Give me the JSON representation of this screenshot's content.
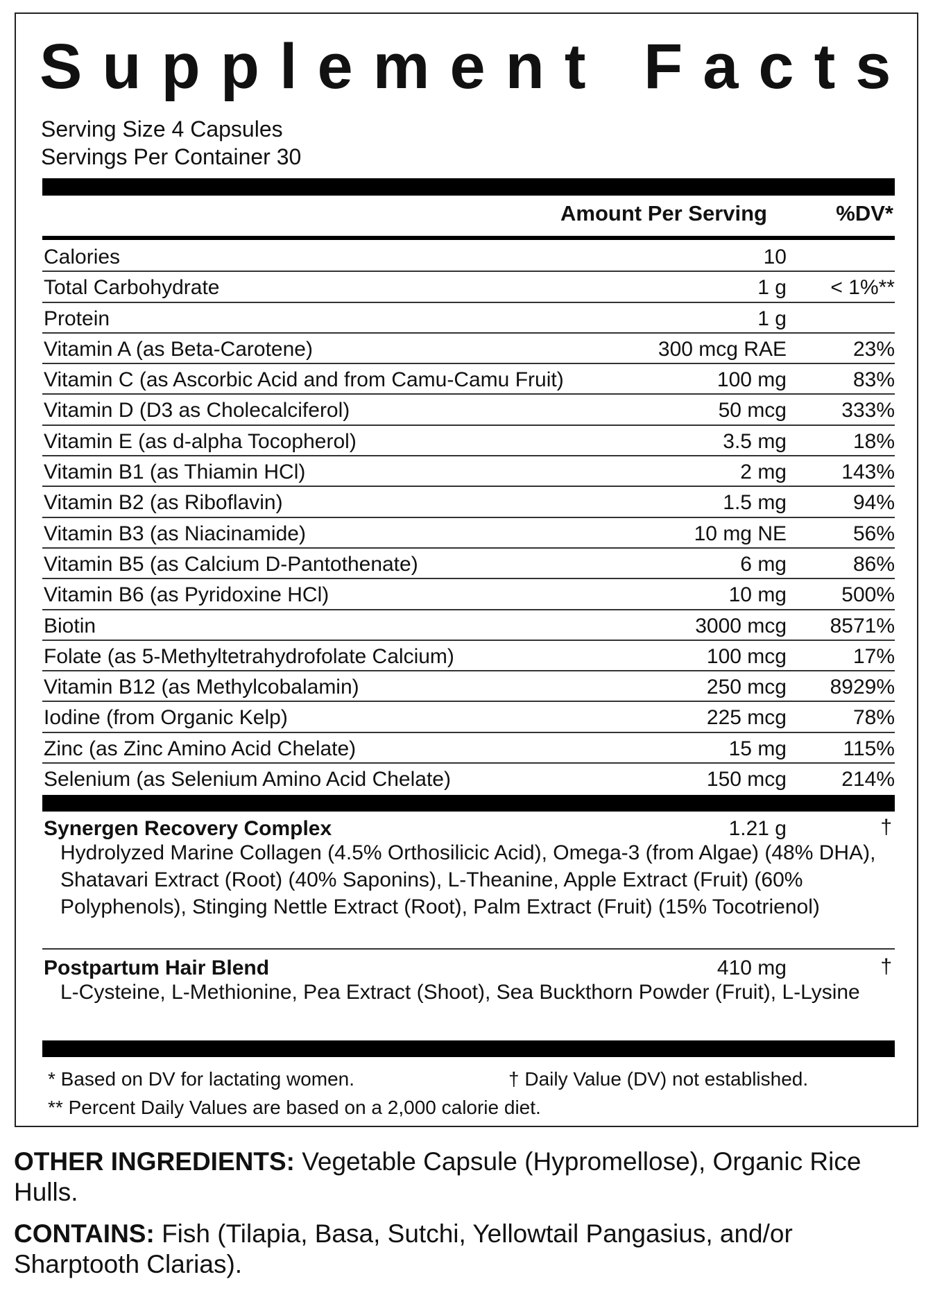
{
  "title": "Supplement Facts",
  "serving_size": "Serving Size 4 Capsules",
  "servings_per_container": "Servings Per Container 30",
  "header": {
    "amount": "Amount Per Serving",
    "dv": "%DV*"
  },
  "rows": [
    {
      "name": "Calories",
      "amount": "10",
      "dv": ""
    },
    {
      "name": "Total Carbohydrate",
      "amount": "1 g",
      "dv": "< 1%**"
    },
    {
      "name": "Protein",
      "amount": "1 g",
      "dv": ""
    },
    {
      "name": "Vitamin A (as Beta-Carotene)",
      "amount": "300 mcg RAE",
      "dv": "23%"
    },
    {
      "name": "Vitamin C (as Ascorbic Acid and from Camu-Camu Fruit)",
      "amount": "100 mg",
      "dv": "83%"
    },
    {
      "name": "Vitamin D (D3 as Cholecalciferol)",
      "amount": "50 mcg",
      "dv": "333%"
    },
    {
      "name": "Vitamin E (as d-alpha Tocopherol)",
      "amount": "3.5 mg",
      "dv": "18%"
    },
    {
      "name": "Vitamin B1 (as Thiamin HCl)",
      "amount": "2 mg",
      "dv": "143%"
    },
    {
      "name": "Vitamin B2 (as Riboflavin)",
      "amount": "1.5 mg",
      "dv": "94%"
    },
    {
      "name": "Vitamin B3 (as Niacinamide)",
      "amount": "10 mg NE",
      "dv": "56%"
    },
    {
      "name": "Vitamin B5 (as Calcium D-Pantothenate)",
      "amount": "6 mg",
      "dv": "86%"
    },
    {
      "name": "Vitamin B6 (as Pyridoxine HCl)",
      "amount": "10 mg",
      "dv": "500%"
    },
    {
      "name": "Biotin",
      "amount": "3000 mcg",
      "dv": "8571%"
    },
    {
      "name": "Folate (as 5-Methyltetrahydrofolate Calcium)",
      "amount": "100 mcg",
      "dv": "17%"
    },
    {
      "name": "Vitamin B12 (as Methylcobalamin)",
      "amount": "250 mcg",
      "dv": "8929%"
    },
    {
      "name": "Iodine (from Organic Kelp)",
      "amount": "225 mcg",
      "dv": "78%"
    },
    {
      "name": "Zinc (as Zinc Amino Acid Chelate)",
      "amount": "15 mg",
      "dv": "115%"
    },
    {
      "name": "Selenium (as Selenium Amino Acid Chelate)",
      "amount": "150 mcg",
      "dv": "214%"
    }
  ],
  "blends": [
    {
      "name": "Synergen Recovery Complex",
      "amount": "1.21 g",
      "dv": "†",
      "description": "Hydrolyzed Marine Collagen (4.5% Orthosilicic Acid), Omega-3 (from Algae) (48% DHA), Shatavari Extract (Root) (40% Saponins), L-Theanine, Apple Extract (Fruit) (60% Polyphenols), Stinging Nettle Extract (Root), Palm Extract (Fruit) (15% Tocotrienol)"
    },
    {
      "name": "Postpartum Hair Blend",
      "amount": "410 mg",
      "dv": "†",
      "description": "L-Cysteine, L-Methionine, Pea Extract (Shoot), Sea Buckthorn Powder (Fruit), L-Lysine"
    }
  ],
  "footnotes": {
    "lactating": "* Based on DV for lactating women.",
    "not_established": "† Daily Value (DV) not established.",
    "calorie_diet": "** Percent Daily Values are based on a 2,000 calorie diet."
  },
  "other_ingredients": {
    "label": "OTHER INGREDIENTS:",
    "text": " Vegetable Capsule (Hypromellose), Organic Rice Hulls."
  },
  "contains": {
    "label": "CONTAINS:",
    "text": " Fish (Tilapia, Basa, Sutchi, Yellowtail Pangasius, and/or Sharptooth Clarias)."
  }
}
